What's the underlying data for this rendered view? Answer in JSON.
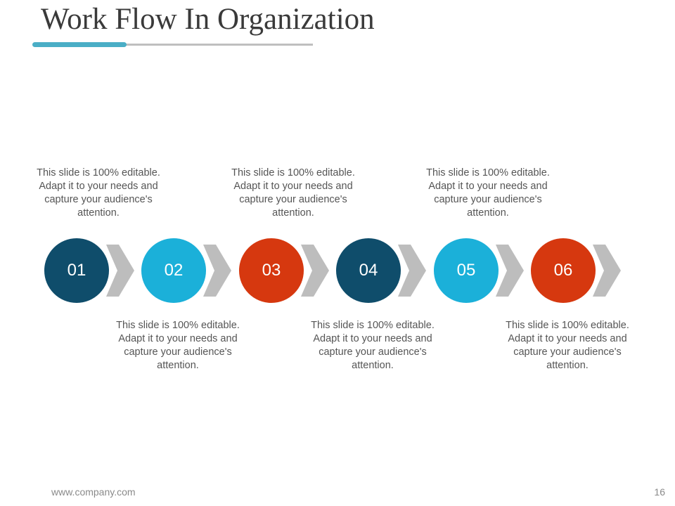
{
  "title": "Work Flow In Organization",
  "accent_color": "#4aaec6",
  "steps": [
    {
      "number": "01",
      "color": "#0f4d6b",
      "text": "This slide is 100% editable. Adapt it to your needs and capture your audience's attention.",
      "text_position": "top"
    },
    {
      "number": "02",
      "color": "#1bb0d9",
      "text": "This slide is 100% editable. Adapt it to your needs and capture your audience's attention.",
      "text_position": "bottom"
    },
    {
      "number": "03",
      "color": "#d6380f",
      "text": "This slide is 100% editable. Adapt it to your needs and capture your audience's attention.",
      "text_position": "top"
    },
    {
      "number": "04",
      "color": "#0f4d6b",
      "text": "This slide is 100% editable. Adapt it to your needs and capture your audience's attention.",
      "text_position": "bottom"
    },
    {
      "number": "05",
      "color": "#1bb0d9",
      "text": "This slide is 100% editable. Adapt it to your needs and capture your audience's attention.",
      "text_position": "top"
    },
    {
      "number": "06",
      "color": "#d6380f",
      "text": "This slide is 100% editable. Adapt it to your needs and capture your audience's attention.",
      "text_position": "bottom"
    }
  ],
  "footer": {
    "url": "www.company.com",
    "page_number": "16"
  }
}
